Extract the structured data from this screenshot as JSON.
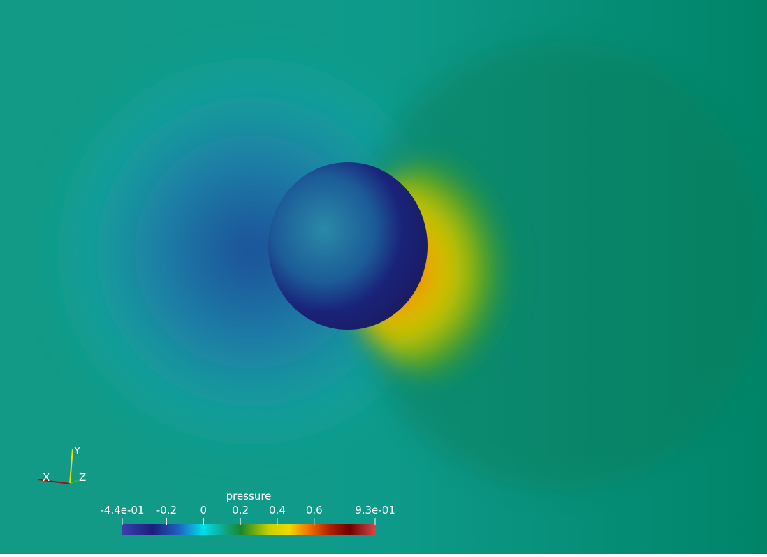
{
  "colorbar": {
    "title": "pressure",
    "range": [
      -0.44,
      0.93
    ],
    "ticks": [
      {
        "value": -0.44,
        "label": "-4.4e-01"
      },
      -0.2,
      0,
      0.2,
      0.4,
      0.6,
      {
        "value": 0.93,
        "label": "9.3e-01"
      }
    ]
  },
  "axes": {
    "x": "X",
    "y": "Y",
    "z": "Z"
  }
}
